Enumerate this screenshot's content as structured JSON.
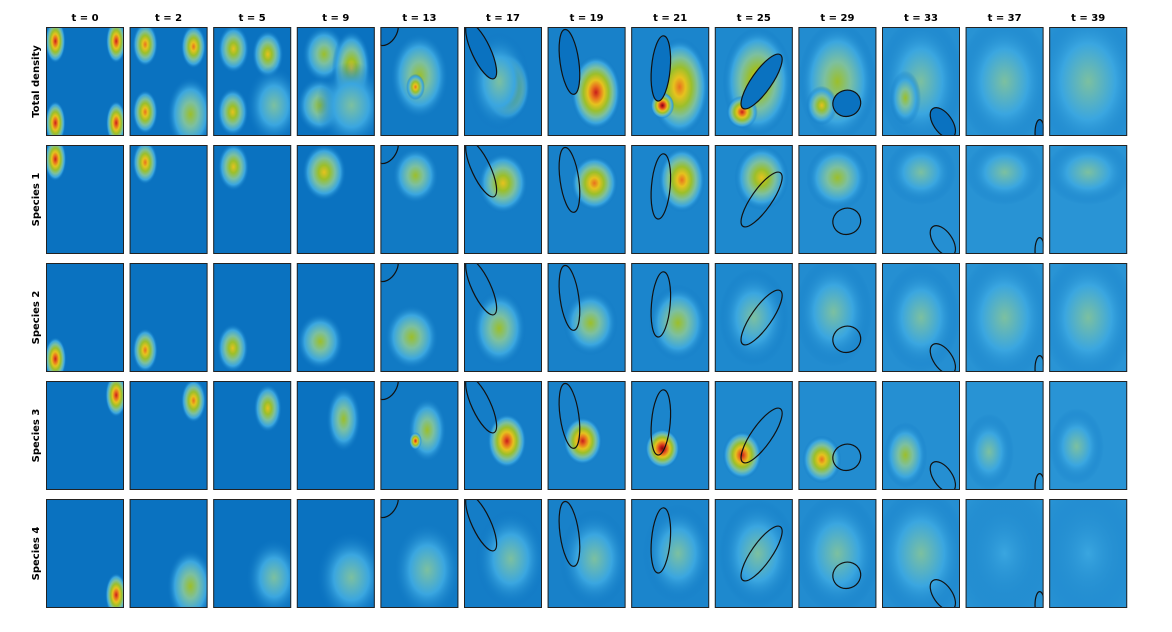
{
  "columns": [
    "t = 0",
    "t = 2",
    "t = 5",
    "t = 9",
    "t = 13",
    "t = 17",
    "t = 19",
    "t = 21",
    "t = 25",
    "t = 29",
    "t = 33",
    "t = 37",
    "t = 39"
  ],
  "rows": [
    "Total density",
    "Species 1",
    "Species 2",
    "Species 3",
    "Species 4"
  ],
  "colors": {
    "background": "#0a72c0",
    "colormap": [
      "#0a72c0",
      "#3aa6e0",
      "#7cc0a0",
      "#9cbf2a",
      "#e6c21e",
      "#e8701e",
      "#c81e1a",
      "#7a0a0a"
    ],
    "obstacle_fill": "#0a72c0",
    "obstacle_stroke": "#111111"
  }
}
